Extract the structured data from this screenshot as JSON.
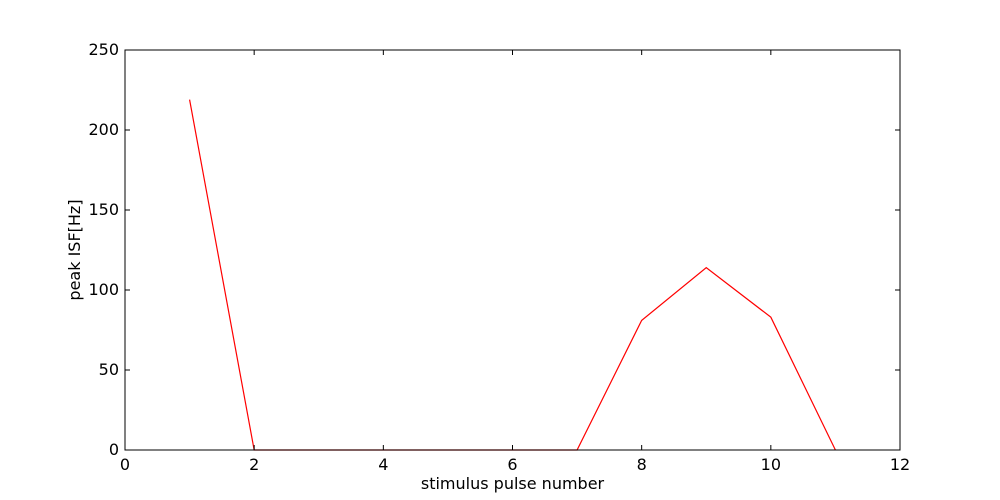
{
  "chart_data": {
    "type": "line",
    "title": "",
    "xlabel": "stimulus pulse number",
    "ylabel": "peak ISF[Hz]",
    "xlim": [
      0,
      12
    ],
    "ylim": [
      0,
      250
    ],
    "xticks": [
      0,
      2,
      4,
      6,
      8,
      10,
      12
    ],
    "yticks": [
      0,
      50,
      100,
      150,
      200,
      250
    ],
    "grid": false,
    "legend": "none",
    "series": [
      {
        "color": "#ff0000",
        "x": [
          1,
          2,
          3,
          4,
          5,
          6,
          7,
          8,
          9,
          10,
          11
        ],
        "y": [
          219,
          0,
          0,
          0,
          0,
          0,
          0,
          81,
          114,
          83,
          0
        ]
      }
    ]
  }
}
